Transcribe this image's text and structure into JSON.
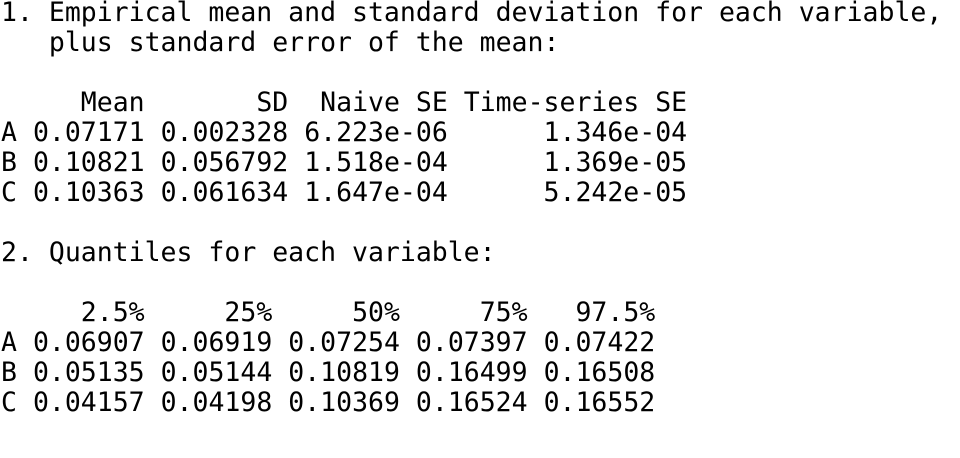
{
  "sections": [
    {
      "title_lines": [
        "1. Empirical mean and standard deviation for each variable,",
        "plus standard error of the mean:"
      ],
      "table": {
        "columns": [
          "Mean",
          "SD",
          "Naive SE",
          "Time-series SE"
        ],
        "rows": [
          {
            "label": "A",
            "cells": [
              "0.07171",
              "0.002328",
              "6.223e-06",
              "1.346e-04"
            ]
          },
          {
            "label": "B",
            "cells": [
              "0.10821",
              "0.056792",
              "1.518e-04",
              "1.369e-05"
            ]
          },
          {
            "label": "C",
            "cells": [
              "0.10363",
              "0.061634",
              "1.647e-04",
              "5.242e-05"
            ]
          }
        ]
      }
    },
    {
      "title_lines": [
        "2. Quantiles for each variable:"
      ],
      "table": {
        "columns": [
          "2.5%",
          "25%",
          "50%",
          "75%",
          "97.5%"
        ],
        "rows": [
          {
            "label": "A",
            "cells": [
              "0.06907",
              "0.06919",
              "0.07254",
              "0.07397",
              "0.07422"
            ]
          },
          {
            "label": "B",
            "cells": [
              "0.05135",
              "0.05144",
              "0.10819",
              "0.16499",
              "0.16508"
            ]
          },
          {
            "label": "C",
            "cells": [
              "0.04157",
              "0.04198",
              "0.10369",
              "0.16524",
              "0.16552"
            ]
          }
        ]
      }
    }
  ]
}
